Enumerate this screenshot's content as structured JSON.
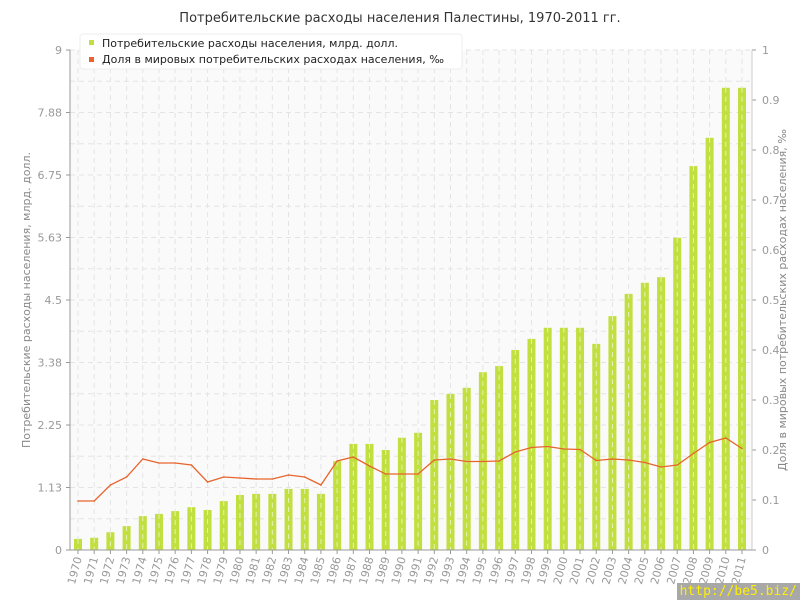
{
  "chart_data": {
    "type": "bar+line",
    "title": "Потребительские расходы населения Палестины, 1970-2011 гг.",
    "ylabel_left": "Потребительские расходы населения, млрд. долл.",
    "ylabel_right": "Доля в мировых потребительских расходах населения, ‰",
    "ylim_left": [
      0,
      9
    ],
    "ylim_right": [
      0,
      1
    ],
    "left_ticks": [
      "0",
      "1.13",
      "2.25",
      "3.38",
      "4.5",
      "5.63",
      "6.75",
      "7.88",
      "9"
    ],
    "right_ticks": [
      "0",
      "0.1",
      "0.2",
      "0.3",
      "0.4",
      "0.5",
      "0.6",
      "0.7",
      "0.8",
      "0.9",
      "1"
    ],
    "grid": true,
    "legend_placement": "top-left",
    "categories": [
      "1970",
      "1971",
      "1972",
      "1973",
      "1974",
      "1975",
      "1976",
      "1977",
      "1978",
      "1979",
      "1980",
      "1981",
      "1982",
      "1983",
      "1984",
      "1985",
      "1986",
      "1987",
      "1988",
      "1989",
      "1990",
      "1991",
      "1992",
      "1993",
      "1994",
      "1995",
      "1996",
      "1997",
      "1998",
      "1999",
      "2000",
      "2001",
      "2002",
      "2003",
      "2004",
      "2005",
      "2006",
      "2007",
      "2008",
      "2009",
      "2010",
      "2011"
    ],
    "series": [
      {
        "name": "Потребительские расходы населения, млрд. долл.",
        "type": "bar",
        "axis": "left",
        "color": "#c2df40",
        "values": [
          0.2,
          0.22,
          0.32,
          0.43,
          0.61,
          0.65,
          0.7,
          0.77,
          0.72,
          0.88,
          0.99,
          1.01,
          1.01,
          1.1,
          1.1,
          1.01,
          1.6,
          1.91,
          1.91,
          1.8,
          2.02,
          2.11,
          2.7,
          2.81,
          2.92,
          3.2,
          3.31,
          3.6,
          3.8,
          4.0,
          4.0,
          4.0,
          3.71,
          4.21,
          4.61,
          4.81,
          4.91,
          5.62,
          6.91,
          7.42,
          8.32,
          8.32
        ]
      },
      {
        "name": "Доля в мировых потребительских расходах населения, ‰",
        "type": "line",
        "axis": "right",
        "color": "#e8642c",
        "values": [
          0.098,
          0.098,
          0.13,
          0.146,
          0.182,
          0.174,
          0.174,
          0.17,
          0.136,
          0.146,
          0.144,
          0.142,
          0.142,
          0.15,
          0.146,
          0.13,
          0.178,
          0.186,
          0.168,
          0.152,
          0.152,
          0.152,
          0.18,
          0.182,
          0.177,
          0.177,
          0.178,
          0.196,
          0.205,
          0.207,
          0.202,
          0.201,
          0.179,
          0.182,
          0.18,
          0.175,
          0.166,
          0.17,
          0.193,
          0.215,
          0.224,
          0.203
        ]
      }
    ]
  },
  "watermark": "http://be5.biz/"
}
